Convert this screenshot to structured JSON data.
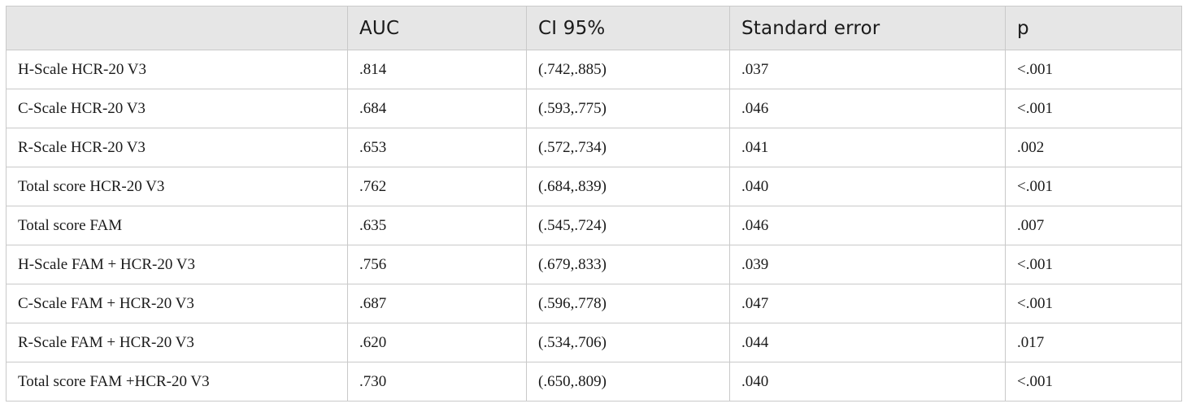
{
  "table": {
    "headers": [
      "",
      "AUC",
      "CI 95%",
      "Standard error",
      "p"
    ],
    "rows": [
      [
        "H-Scale HCR-20 V3",
        ".814",
        "(.742,.885)",
        ".037",
        "<.001"
      ],
      [
        "C-Scale HCR-20 V3",
        ".684",
        "(.593,.775)",
        ".046",
        "<.001"
      ],
      [
        "R-Scale HCR-20 V3",
        ".653",
        "(.572,.734)",
        ".041",
        ".002"
      ],
      [
        "Total score HCR-20 V3",
        ".762",
        "(.684,.839)",
        ".040",
        "<.001"
      ],
      [
        "Total score FAM",
        ".635",
        "(.545,.724)",
        ".046",
        ".007"
      ],
      [
        "H-Scale FAM + HCR-20 V3",
        ".756",
        "(.679,.833)",
        ".039",
        "<.001"
      ],
      [
        "C-Scale FAM + HCR-20 V3",
        ".687",
        "(.596,.778)",
        ".047",
        "<.001"
      ],
      [
        "R-Scale FAM + HCR-20 V3",
        ".620",
        "(.534,.706)",
        ".044",
        ".017"
      ],
      [
        "Total score FAM +HCR-20 V3",
        ".730",
        "(.650,.809)",
        ".040",
        "<.001"
      ]
    ]
  }
}
